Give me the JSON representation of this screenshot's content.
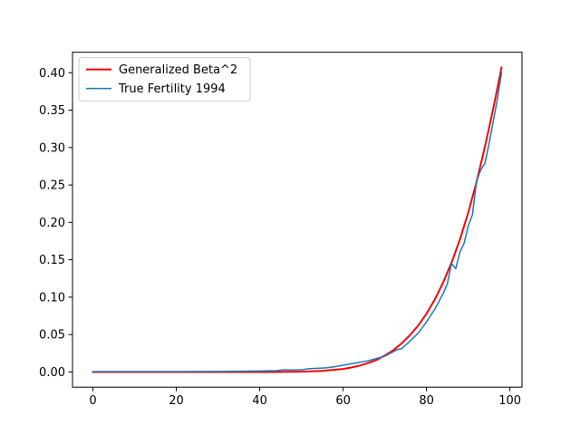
{
  "chart_data": {
    "type": "line",
    "title": "",
    "xlabel": "",
    "ylabel": "",
    "xlim": [
      -4.9,
      102.9
    ],
    "ylim": [
      -0.0203,
      0.4275
    ],
    "xticks": [
      0,
      20,
      40,
      60,
      80,
      100
    ],
    "xtick_labels": [
      "0",
      "20",
      "40",
      "60",
      "80",
      "100"
    ],
    "yticks": [
      0.0,
      0.05,
      0.1,
      0.15,
      0.2,
      0.25,
      0.3,
      0.35,
      0.4
    ],
    "ytick_labels": [
      "0.00",
      "0.05",
      "0.10",
      "0.15",
      "0.20",
      "0.25",
      "0.30",
      "0.35",
      "0.40"
    ],
    "grid": false,
    "legend_position": "top-left",
    "series": [
      {
        "name": "Generalized Beta^2",
        "color": "#ff0000",
        "linewidth": 2,
        "x": [
          0,
          10,
          20,
          30,
          40,
          45,
          50,
          55,
          60,
          62,
          64,
          66,
          68,
          70,
          72,
          74,
          76,
          78,
          80,
          82,
          84,
          86,
          88,
          90,
          92,
          94,
          96,
          98
        ],
        "y": [
          0.0,
          0.0,
          0.0,
          0.0,
          0.0,
          0.0001,
          0.0004,
          0.0015,
          0.004,
          0.006,
          0.0085,
          0.012,
          0.016,
          0.022,
          0.029,
          0.038,
          0.049,
          0.062,
          0.078,
          0.097,
          0.12,
          0.146,
          0.177,
          0.213,
          0.254,
          0.301,
          0.352,
          0.407
        ]
      },
      {
        "name": "True Fertility 1994",
        "color": "#1f77b4",
        "linewidth": 1.5,
        "x": [
          0,
          10,
          20,
          30,
          40,
          44,
          46,
          48,
          50,
          52,
          54,
          56,
          58,
          60,
          62,
          64,
          66,
          68,
          70,
          72,
          73,
          74,
          76,
          78,
          80,
          82,
          84,
          85,
          86,
          87,
          88,
          89,
          90,
          91,
          92,
          93,
          94,
          95,
          96,
          97,
          98
        ],
        "y": [
          0.0005,
          0.0005,
          0.0005,
          0.0007,
          0.0013,
          0.0018,
          0.003,
          0.0025,
          0.003,
          0.0045,
          0.005,
          0.0055,
          0.007,
          0.009,
          0.011,
          0.013,
          0.015,
          0.018,
          0.021,
          0.027,
          0.03,
          0.031,
          0.041,
          0.052,
          0.067,
          0.084,
          0.105,
          0.118,
          0.145,
          0.138,
          0.16,
          0.172,
          0.195,
          0.21,
          0.255,
          0.27,
          0.279,
          0.305,
          0.335,
          0.365,
          0.4
        ]
      }
    ]
  }
}
